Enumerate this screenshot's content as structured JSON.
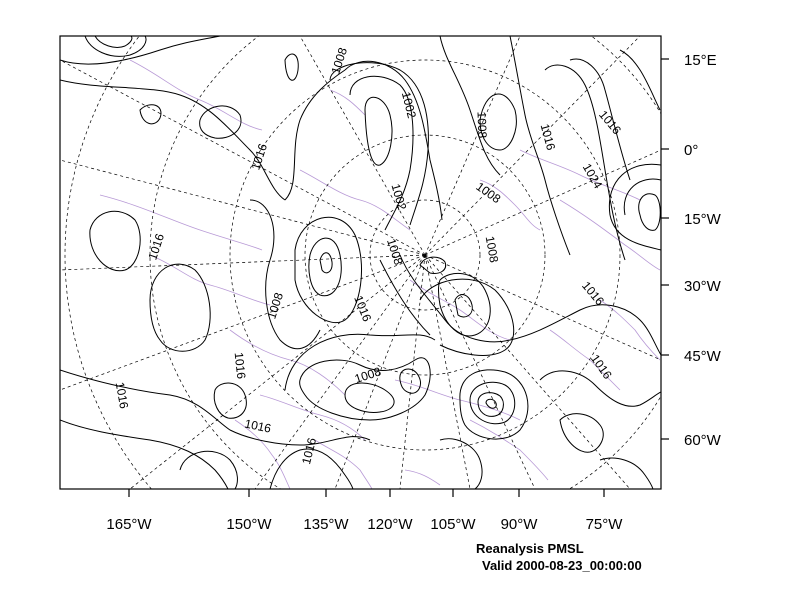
{
  "map": {
    "bottom_axis_labels": [
      "165°W",
      "150°W",
      "135°W",
      "120°W",
      "105°W",
      "90°W",
      "75°W"
    ],
    "right_axis_labels": [
      "15°E",
      "0°",
      "15°W",
      "30°W",
      "45°W",
      "60°W"
    ],
    "contour_labels": [
      "1016",
      "1008",
      "1002",
      "1008",
      "1016",
      "1016",
      "1024",
      "1016",
      "1002",
      "1008",
      "1008",
      "1016",
      "1008",
      "1008",
      "1016",
      "1016",
      "1016",
      "1016",
      "1008",
      "1016",
      "1016",
      "1016",
      "1016"
    ],
    "colors": {
      "contour": "#000000",
      "coastline": "#b89ad6",
      "graticule": "#000000"
    },
    "contour_variable": "PMSL"
  },
  "caption": {
    "title": "Reanalysis PMSL",
    "valid": "Valid 2000-08-23_00:00:00"
  }
}
